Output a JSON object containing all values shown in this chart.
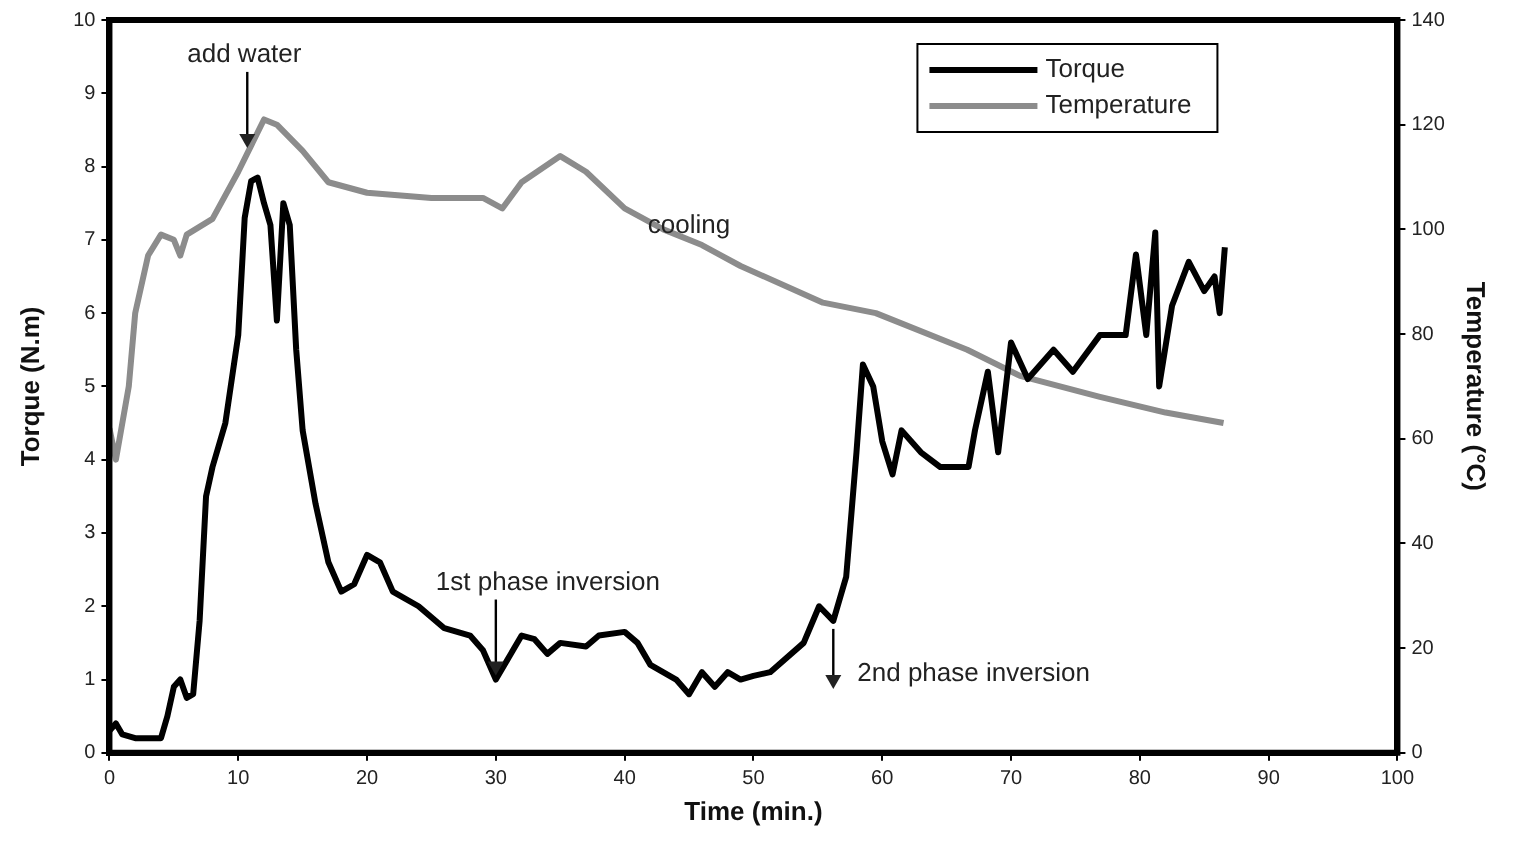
{
  "chart_data": {
    "type": "line",
    "xlabel": "Time (min.)",
    "ylabel": "Torque (N.m)",
    "y2label": "Temperature (°C)",
    "xlim": [
      0,
      100
    ],
    "xticks": [
      0,
      10,
      20,
      30,
      40,
      50,
      60,
      70,
      80,
      90,
      100
    ],
    "ylim": [
      0,
      10
    ],
    "yticks": [
      0,
      1,
      2,
      3,
      4,
      5,
      6,
      7,
      8,
      9,
      10
    ],
    "y2lim": [
      0,
      140
    ],
    "y2ticks": [
      0,
      20,
      40,
      60,
      80,
      100,
      120,
      140
    ],
    "legend": "top right",
    "grid": false,
    "marker": "none",
    "line_style": "solid",
    "annotations": [
      {
        "text": "add water",
        "x": 10.7,
        "y": 8.2
      },
      {
        "text": "1st phase inversion",
        "x": 30,
        "y": 1.0
      },
      "cooling",
      {
        "text": "2nd phase inversion",
        "x": 56.2,
        "y": 1.8
      }
    ],
    "series": [
      {
        "name": "Torque",
        "color": "#000000",
        "x": [
          0,
          0.5,
          1,
          2,
          4,
          4.5,
          5,
          5.5,
          6,
          6.5,
          7,
          7.5,
          8,
          9,
          10,
          10.5,
          11,
          11.5,
          12,
          12.5,
          13,
          13.5,
          14,
          14.5,
          15,
          16,
          17,
          18,
          19,
          20,
          21,
          22,
          24,
          26,
          28,
          29,
          30,
          31,
          32,
          33,
          34,
          35,
          37,
          38,
          40,
          41,
          42,
          44,
          45,
          46,
          47,
          48,
          49,
          50,
          51.3,
          53.9,
          55.1,
          56.2,
          57.2,
          58,
          58.5,
          59.3,
          60,
          60.8,
          61.5,
          63,
          64.5,
          66.7,
          67.2,
          68.2,
          69,
          70,
          71.3,
          73.3,
          74.8,
          76.9,
          78.9,
          79.7,
          80.5,
          81.2,
          81.5,
          82.5,
          83.8,
          85,
          85.8,
          86.2,
          86.6
        ],
        "values": [
          0.3,
          0.4,
          0.25,
          0.2,
          0.2,
          0.5,
          0.9,
          1.0,
          0.75,
          0.8,
          1.8,
          3.5,
          3.9,
          4.5,
          5.7,
          7.3,
          7.8,
          7.85,
          7.5,
          7.2,
          5.9,
          7.5,
          7.2,
          5.5,
          4.4,
          3.4,
          2.6,
          2.2,
          2.3,
          2.7,
          2.6,
          2.2,
          2.0,
          1.7,
          1.6,
          1.4,
          1.0,
          1.3,
          1.6,
          1.55,
          1.35,
          1.5,
          1.45,
          1.6,
          1.65,
          1.5,
          1.2,
          1.0,
          0.8,
          1.1,
          0.9,
          1.1,
          1.0,
          1.05,
          1.1,
          1.5,
          2.0,
          1.8,
          2.4,
          4.1,
          5.3,
          5.0,
          4.25,
          3.8,
          4.4,
          4.1,
          3.9,
          3.9,
          4.4,
          5.2,
          4.1,
          5.6,
          5.1,
          5.5,
          5.2,
          5.7,
          5.7,
          6.8,
          5.7,
          7.1,
          5.0,
          6.1,
          6.7,
          6.3,
          6.5,
          6.0,
          6.9
        ]
      },
      {
        "name": "Temperature",
        "color": "#8c8c8c",
        "axis": "y2",
        "x": [
          0,
          0.5,
          1.5,
          2,
          3,
          4,
          5,
          5.5,
          6,
          8,
          10,
          11,
          12,
          13,
          15,
          17,
          20,
          25,
          29,
          30.5,
          32,
          35,
          37,
          40,
          43,
          46,
          49,
          55.4,
          59.5,
          66.6,
          70.7,
          76.9,
          82,
          86.5
        ],
        "values": [
          62,
          56,
          70,
          84,
          95,
          99,
          98,
          95,
          99,
          102,
          111,
          116,
          121,
          120,
          115,
          109,
          107,
          106,
          106,
          104,
          109,
          114,
          111,
          104,
          100,
          97,
          93,
          86,
          84,
          77,
          72,
          68,
          65,
          63
        ]
      }
    ]
  }
}
